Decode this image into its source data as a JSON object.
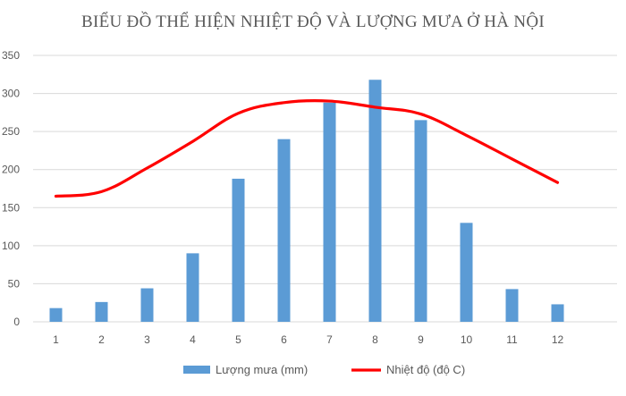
{
  "chart_data": {
    "type": "bar",
    "title": "BIỂU ĐỒ  THỂ HIỆN NHIỆT ĐỘ VÀ LƯỢNG MƯA Ở HÀ NỘI",
    "categories": [
      "1",
      "2",
      "3",
      "4",
      "5",
      "6",
      "7",
      "8",
      "9",
      "10",
      "11",
      "12"
    ],
    "ylim": [
      0,
      350
    ],
    "yticks": [
      "0",
      "50",
      "100",
      "150",
      "200",
      "250",
      "300",
      "350"
    ],
    "grid": true,
    "legend_position": "bottom",
    "series": [
      {
        "name": "Lượng mưa (mm)",
        "type": "bar",
        "color": "#5b9bd5",
        "values": [
          18,
          26,
          44,
          90,
          188,
          240,
          288,
          318,
          265,
          130,
          43,
          23
        ]
      },
      {
        "name": "Nhiệt độ (độ C)",
        "type": "line",
        "color": "#ff0000",
        "values": [
          165,
          171,
          202,
          237,
          274,
          288,
          290,
          282,
          273,
          245,
          214,
          183
        ]
      }
    ]
  }
}
